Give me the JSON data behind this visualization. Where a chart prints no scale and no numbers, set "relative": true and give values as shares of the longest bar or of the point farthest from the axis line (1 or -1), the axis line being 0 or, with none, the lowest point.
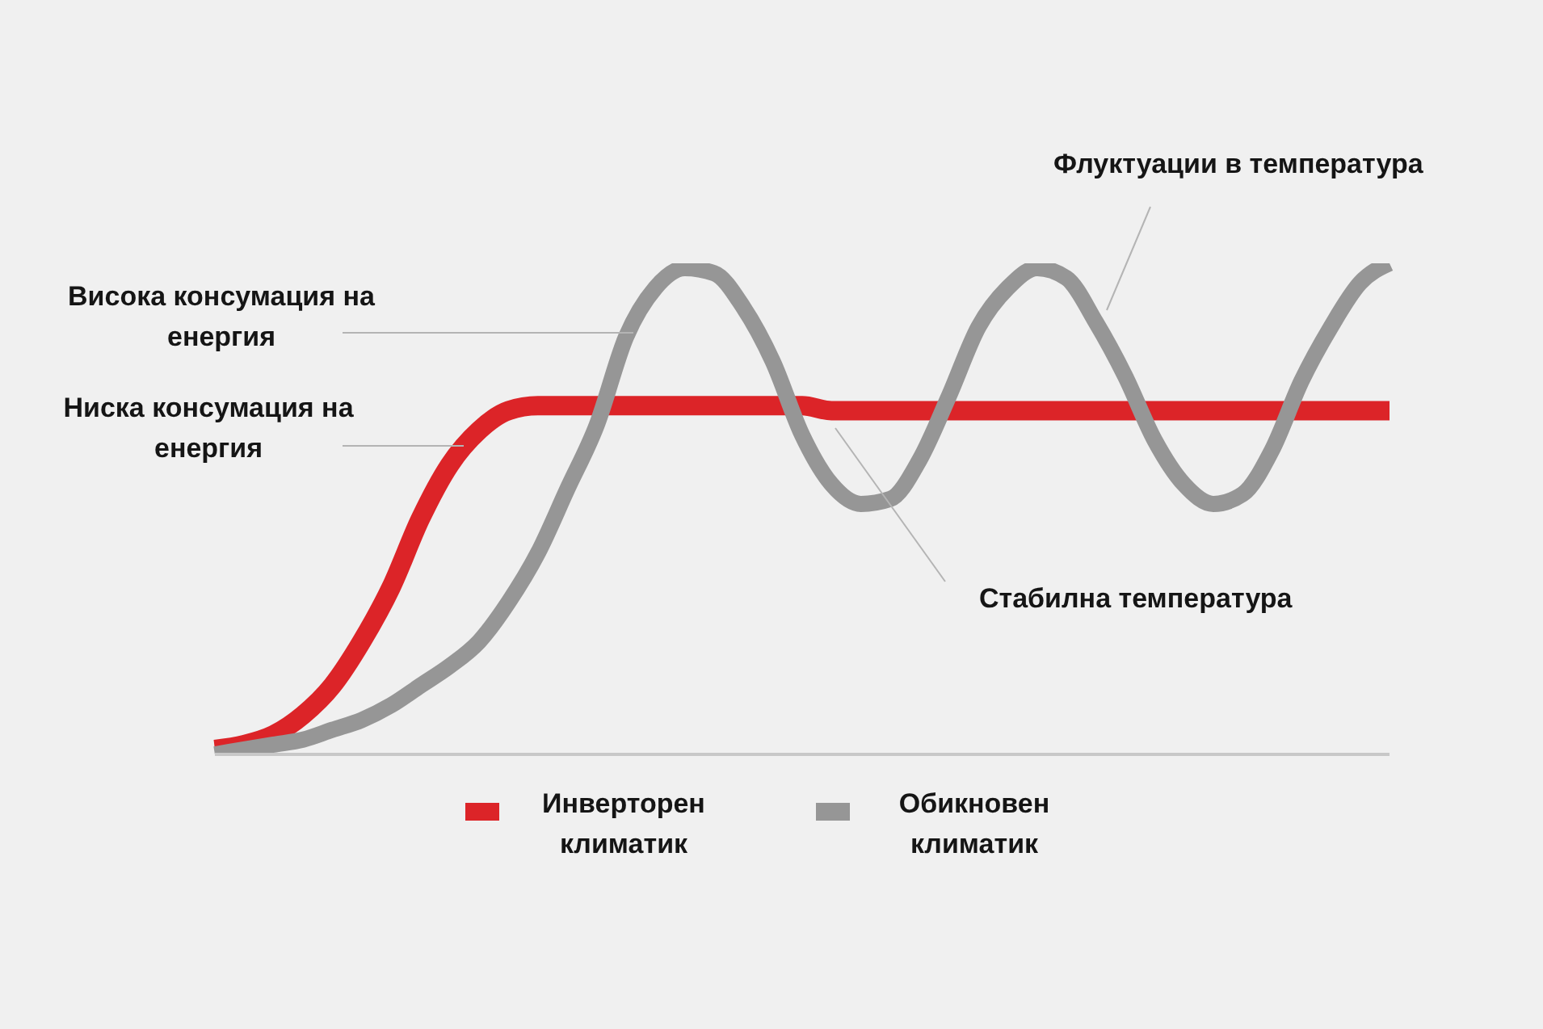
{
  "chart_data": {
    "type": "line",
    "relative": true,
    "categories": [
      null,
      null,
      null,
      null,
      null,
      null,
      null,
      null,
      null,
      null,
      null,
      null,
      null,
      null,
      null,
      null,
      null,
      null,
      null,
      null,
      null,
      null,
      null,
      null,
      null,
      null,
      null,
      null,
      null,
      null,
      null,
      null,
      null,
      null,
      null,
      null,
      null,
      null,
      null,
      null,
      null
    ],
    "series": [
      {
        "name": "Инверторен климатик",
        "color": "#dc2428",
        "values": [
          0.01,
          0.02,
          0.04,
          0.08,
          0.14,
          0.23,
          0.34,
          0.48,
          0.59,
          0.66,
          0.7,
          0.71,
          0.71,
          0.71,
          0.71,
          0.71,
          0.71,
          0.71,
          0.71,
          0.71,
          0.71,
          0.7,
          0.7,
          0.7,
          0.7,
          0.7,
          0.7,
          0.7,
          0.7,
          0.7,
          0.7,
          0.7,
          0.7,
          0.7,
          0.7,
          0.7,
          0.7,
          0.7,
          0.7,
          0.7,
          0.7
        ]
      },
      {
        "name": "Обикновен климатик",
        "color": "#969696",
        "values": [
          0.0,
          0.01,
          0.02,
          0.03,
          0.05,
          0.07,
          0.1,
          0.14,
          0.18,
          0.23,
          0.31,
          0.41,
          0.54,
          0.67,
          0.85,
          0.95,
          0.99,
          0.98,
          0.91,
          0.8,
          0.65,
          0.55,
          0.51,
          0.52,
          0.6,
          0.73,
          0.87,
          0.95,
          0.99,
          0.97,
          0.88,
          0.77,
          0.64,
          0.55,
          0.51,
          0.53,
          0.62,
          0.76,
          0.87,
          0.96,
          1.0
        ]
      }
    ],
    "legend": "bottom",
    "annotations": [
      "Висока консумация на енергия",
      "Ниска консумация на енергия",
      "Флуктуации в температура",
      "Стабилна температура"
    ]
  }
}
